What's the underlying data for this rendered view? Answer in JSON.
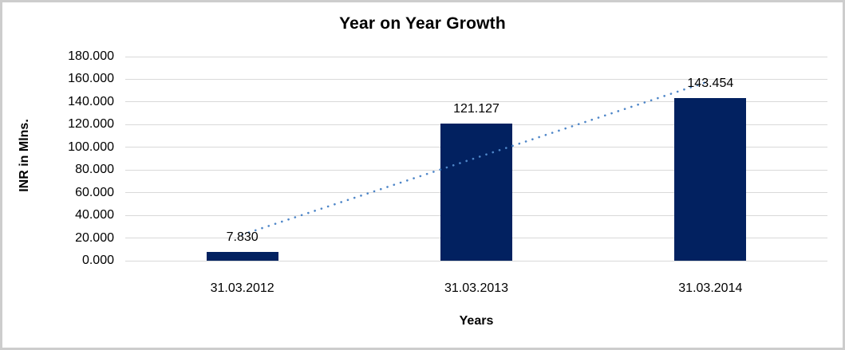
{
  "chart_data": {
    "type": "bar",
    "title": "Year on Year Growth",
    "xlabel": "Years",
    "ylabel": "INR in Mlns.",
    "categories": [
      "31.03.2012",
      "31.03.2013",
      "31.03.2014"
    ],
    "values": [
      7.83,
      121.127,
      143.454
    ],
    "data_labels": [
      "7.830",
      "121.127",
      "143.454"
    ],
    "ylim": [
      0,
      180
    ],
    "ytick_step": 20,
    "ytick_labels": [
      "0.000",
      "20.000",
      "40.000",
      "60.000",
      "80.000",
      "100.000",
      "120.000",
      "140.000",
      "160.000",
      "180.000"
    ],
    "grid": true,
    "legend_position": "none",
    "bar_color": "#022160",
    "gridline_color": "#d9d9d9",
    "trendline": {
      "type": "linear",
      "style": "dotted",
      "color": "#4e86c8"
    },
    "frame_border_color": "#cdcdcd",
    "text_color": "#000000"
  }
}
